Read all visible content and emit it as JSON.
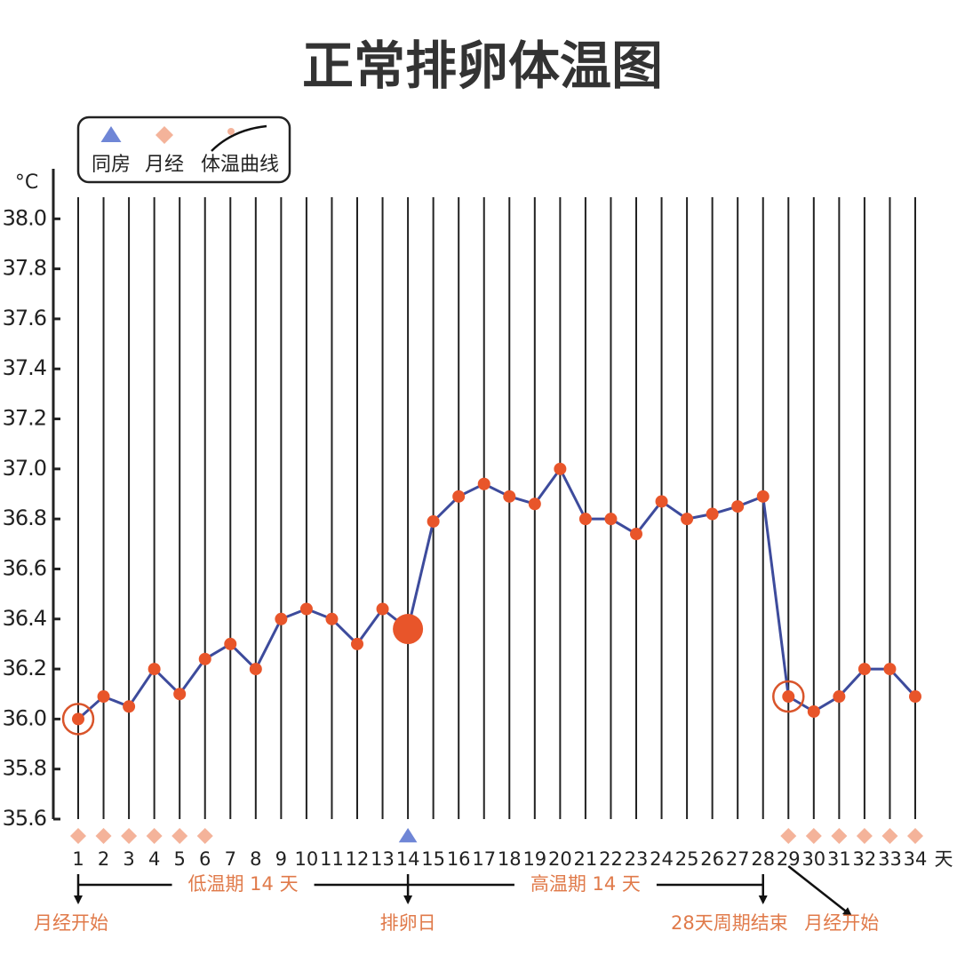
{
  "chart_data": {
    "type": "line",
    "title": "正常排卵体温图",
    "y_unit": "°C",
    "x_unit": "天",
    "x": [
      1,
      2,
      3,
      4,
      5,
      6,
      7,
      8,
      9,
      10,
      11,
      12,
      13,
      14,
      15,
      16,
      17,
      18,
      19,
      20,
      21,
      22,
      23,
      24,
      25,
      26,
      27,
      28,
      29,
      30,
      31,
      32,
      33,
      34
    ],
    "xlim": [
      1,
      34
    ],
    "series": [
      {
        "name": "体温曲线",
        "color": "#3d4b9c",
        "point_color": "#e8552a",
        "values": [
          36.0,
          36.09,
          36.05,
          36.2,
          36.1,
          36.24,
          36.3,
          36.2,
          36.4,
          36.44,
          36.4,
          36.3,
          36.44,
          36.36,
          36.79,
          36.89,
          36.94,
          36.89,
          36.86,
          37.0,
          36.8,
          36.8,
          36.74,
          36.87,
          36.8,
          36.82,
          36.85,
          36.89,
          36.09,
          36.03,
          36.09,
          36.2,
          36.2,
          36.09
        ]
      }
    ],
    "ylim": [
      35.6,
      38.2
    ],
    "yticks": [
      35.6,
      35.8,
      {
        "value": 36,
        "label": "36.0"
      },
      36.2,
      36.4,
      36.6,
      36.8,
      {
        "value": 37,
        "label": "37.0"
      },
      37.2,
      37.4,
      37.6,
      37.8,
      {
        "value": 38,
        "label": "38.0"
      }
    ],
    "grid": true,
    "markers": [
      {
        "name": "同房",
        "shape": "triangle",
        "color": "#6f86d6",
        "days": [
          14
        ]
      },
      {
        "name": "月经",
        "shape": "diamond",
        "color": "#f4b39a",
        "days": [
          1,
          2,
          3,
          4,
          5,
          6,
          29,
          30,
          31,
          32,
          33,
          34
        ]
      }
    ],
    "ovulation_day": 14,
    "cycle_start_days": [
      1,
      29
    ],
    "phases": [
      {
        "label": "低温期 14 天",
        "start": 1,
        "end": 14
      },
      {
        "label": "高温期 14 天",
        "start": 14,
        "end": 28
      }
    ],
    "events": [
      {
        "label": "月经开始",
        "day": 1
      },
      {
        "label": "排卵日",
        "day": 14
      },
      {
        "label": "28天周期结束",
        "day": 28
      },
      {
        "label": "月经开始",
        "day": 29
      }
    ]
  }
}
